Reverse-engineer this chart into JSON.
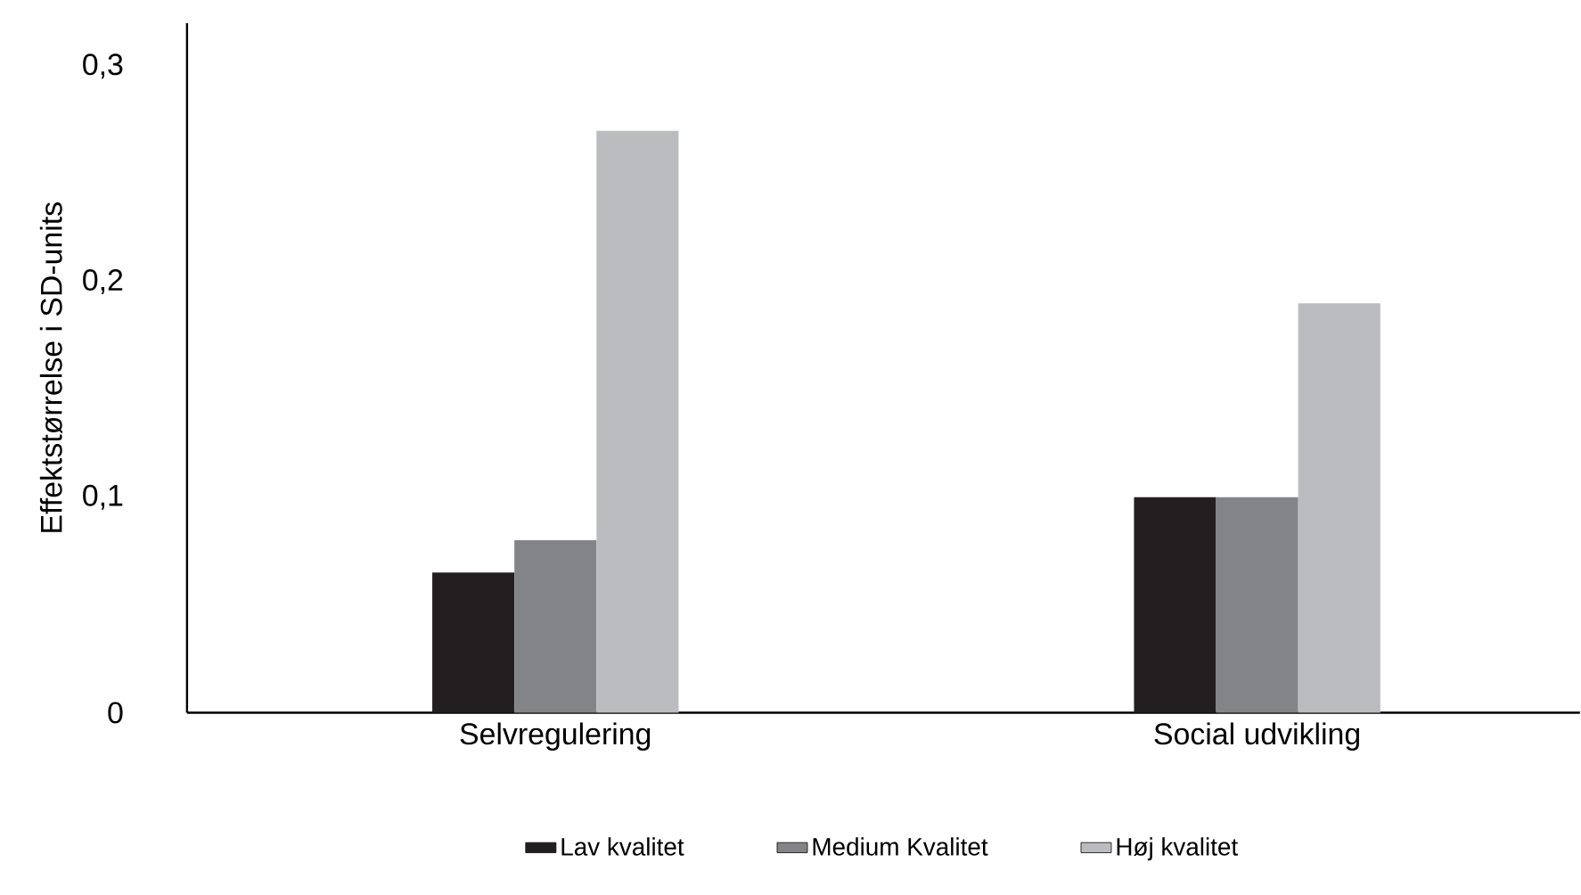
{
  "chart_data": {
    "type": "bar",
    "ylabel": "Effektstørrelse i SD-units",
    "categories": [
      "Selvregulering",
      "Social udvikling"
    ],
    "series": [
      {
        "name": "Lav kvalitet",
        "color": "#231f20",
        "values": [
          0.065,
          0.1
        ]
      },
      {
        "name": "Medium Kvalitet",
        "color": "#838487",
        "values": [
          0.08,
          0.1
        ]
      },
      {
        "name": "Høj kvalitet",
        "color": "#bbbcc0",
        "values": [
          0.27,
          0.19
        ]
      }
    ],
    "ylim": [
      0,
      0.32
    ],
    "yticks": [
      0,
      {
        "value": 0.1,
        "label": "0,1"
      },
      {
        "value": 0.2,
        "label": "0,2"
      },
      {
        "value": 0.3,
        "label": "0,3"
      }
    ],
    "grid": false,
    "legend": "bottom"
  }
}
